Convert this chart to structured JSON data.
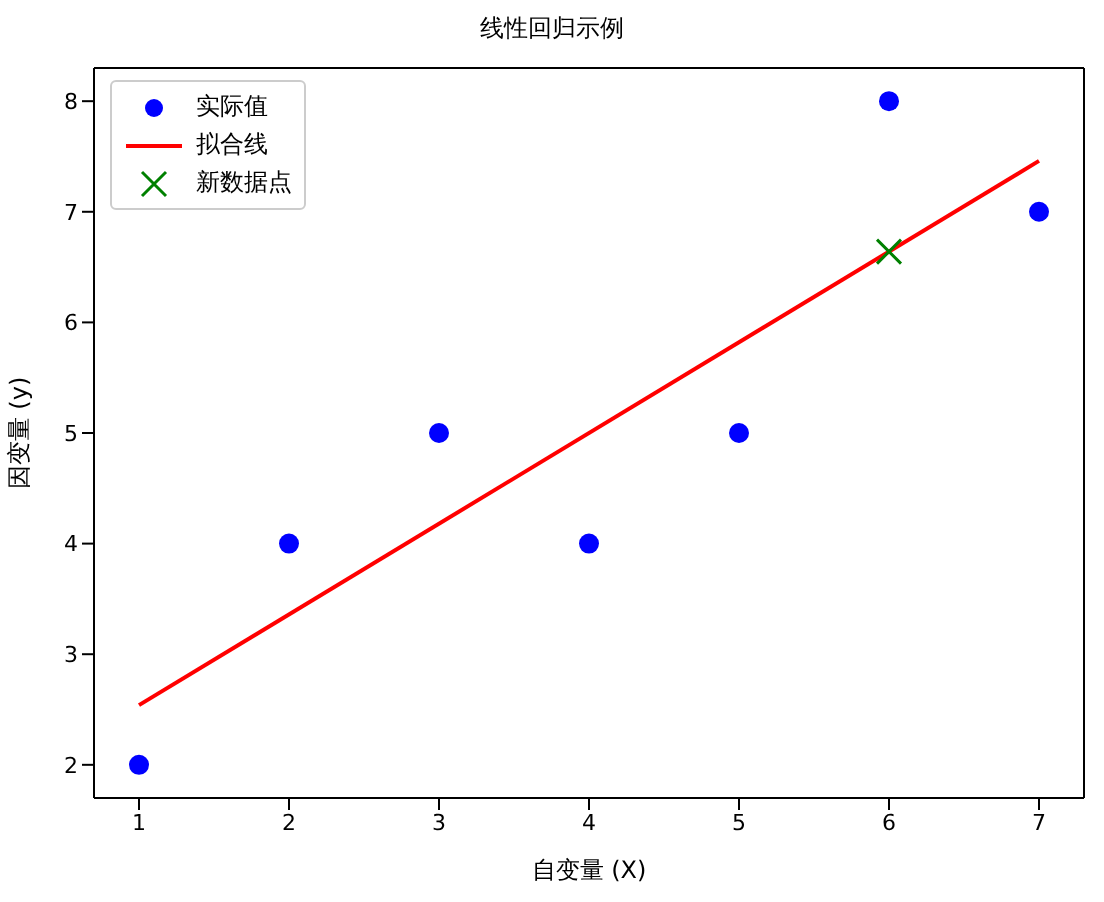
{
  "chart_data": {
    "type": "scatter",
    "title": "线性回归示例",
    "xlabel": "自变量 (X)",
    "ylabel": "因变量 (y)",
    "xlim": [
      0.7,
      7.3
    ],
    "xticks": [
      1,
      2,
      3,
      4,
      5,
      6,
      7
    ],
    "ylim": [
      1.7,
      8.3
    ],
    "yticks": [
      2,
      3,
      4,
      5,
      6,
      7,
      8
    ],
    "grid": false,
    "legend": "top left",
    "series": [
      {
        "name": "实际值",
        "marker": "circle",
        "color": "#0000ff",
        "x": [
          1,
          2,
          3,
          4,
          5,
          6,
          7
        ],
        "values": [
          2,
          4,
          5,
          4,
          5,
          8,
          7
        ]
      },
      {
        "name": "拟合线",
        "type": "line",
        "marker": "none",
        "line_style": "solid",
        "color": "#ff0000",
        "x": [
          1,
          7
        ],
        "values": [
          2.54,
          7.46
        ]
      },
      {
        "name": "新数据点",
        "marker": "cross",
        "color": "#008000",
        "x": [
          6
        ],
        "values": [
          6.64
        ]
      }
    ]
  }
}
